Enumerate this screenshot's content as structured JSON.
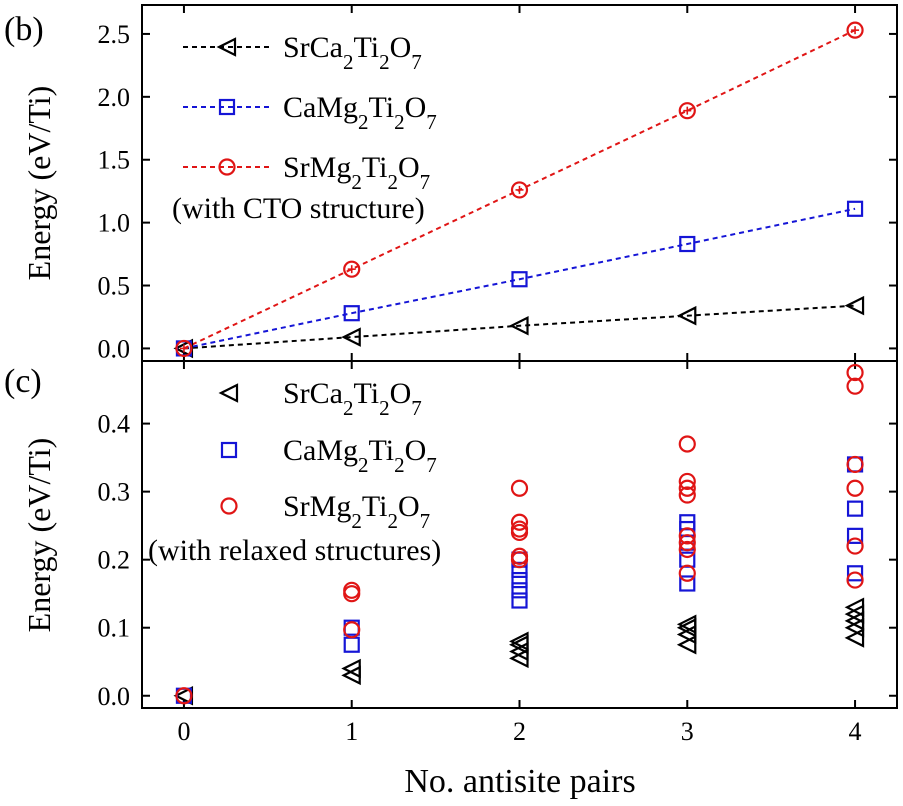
{
  "chart_data": [
    {
      "panel": "(b)",
      "type": "line",
      "ylabel": "Energy (eV/Ti)",
      "xlim": [
        -0.25,
        4.25
      ],
      "ylim": [
        -0.1,
        2.73
      ],
      "yticks": [
        "0.0",
        "0.5",
        "1.0",
        "1.5",
        "2.0",
        "2.5"
      ],
      "grid": false,
      "legend_position": "top-left",
      "legend_note": "(with CTO structure)",
      "x": [
        0,
        1,
        2,
        3,
        4
      ],
      "series": [
        {
          "name": "SrCa2Ti2O7",
          "color": "#000000",
          "marker": "triangle-left",
          "line": "dashed",
          "values": [
            0,
            0.09,
            0.18,
            0.26,
            0.34
          ]
        },
        {
          "name": "CaMg2Ti2O7",
          "color": "#1515d6",
          "marker": "square",
          "line": "dashed",
          "values": [
            0,
            0.28,
            0.55,
            0.83,
            1.11
          ]
        },
        {
          "name": "SrMg2Ti2O7",
          "color": "#e01515",
          "marker": "circle-plus",
          "line": "dashed",
          "values": [
            0,
            0.63,
            1.26,
            1.89,
            2.53
          ]
        }
      ]
    },
    {
      "panel": "(c)",
      "type": "scatter",
      "ylabel": "Energy (eV/Ti)",
      "xlabel": "No. antisite pairs",
      "xlim": [
        -0.25,
        4.25
      ],
      "ylim": [
        -0.018,
        0.492
      ],
      "xticks": [
        "0",
        "1",
        "2",
        "3",
        "4"
      ],
      "yticks": [
        "0.0",
        "0.1",
        "0.2",
        "0.3",
        "0.4"
      ],
      "grid": false,
      "legend_position": "top-left",
      "legend_note": "(with relaxed structures)",
      "series": [
        {
          "name": "SrCa2Ti2O7",
          "color": "#000000",
          "marker": "triangle-left",
          "points": [
            [
              0,
              0
            ],
            [
              1,
              0.03
            ],
            [
              1,
              0.04
            ],
            [
              2,
              0.055
            ],
            [
              2,
              0.065
            ],
            [
              2,
              0.075
            ],
            [
              2,
              0.08
            ],
            [
              3,
              0.075
            ],
            [
              3,
              0.09
            ],
            [
              3,
              0.1
            ],
            [
              3,
              0.105
            ],
            [
              4,
              0.085
            ],
            [
              4,
              0.1
            ],
            [
              4,
              0.11
            ],
            [
              4,
              0.12
            ],
            [
              4,
              0.13
            ]
          ]
        },
        {
          "name": "CaMg2Ti2O7",
          "color": "#1515d6",
          "marker": "square",
          "points": [
            [
              0,
              0
            ],
            [
              1,
              0.075
            ],
            [
              1,
              0.1
            ],
            [
              2,
              0.14
            ],
            [
              2,
              0.155
            ],
            [
              2,
              0.17
            ],
            [
              2,
              0.185
            ],
            [
              2,
              0.2
            ],
            [
              3,
              0.165
            ],
            [
              3,
              0.2
            ],
            [
              3,
              0.225
            ],
            [
              3,
              0.245
            ],
            [
              3,
              0.255
            ],
            [
              4,
              0.18
            ],
            [
              4,
              0.235
            ],
            [
              4,
              0.275
            ],
            [
              4,
              0.34
            ]
          ]
        },
        {
          "name": "SrMg2Ti2O7",
          "color": "#e01515",
          "marker": "circle",
          "points": [
            [
              0,
              0
            ],
            [
              1,
              0.097
            ],
            [
              1,
              0.15
            ],
            [
              1,
              0.155
            ],
            [
              2,
              0.2
            ],
            [
              2,
              0.205
            ],
            [
              2,
              0.24
            ],
            [
              2,
              0.245
            ],
            [
              2,
              0.255
            ],
            [
              2,
              0.305
            ],
            [
              3,
              0.18
            ],
            [
              3,
              0.215
            ],
            [
              3,
              0.225
            ],
            [
              3,
              0.235
            ],
            [
              3,
              0.295
            ],
            [
              3,
              0.305
            ],
            [
              3,
              0.315
            ],
            [
              3,
              0.37
            ],
            [
              4,
              0.17
            ],
            [
              4,
              0.22
            ],
            [
              4,
              0.305
            ],
            [
              4,
              0.34
            ],
            [
              4,
              0.455
            ],
            [
              4,
              0.475
            ]
          ]
        }
      ]
    }
  ]
}
